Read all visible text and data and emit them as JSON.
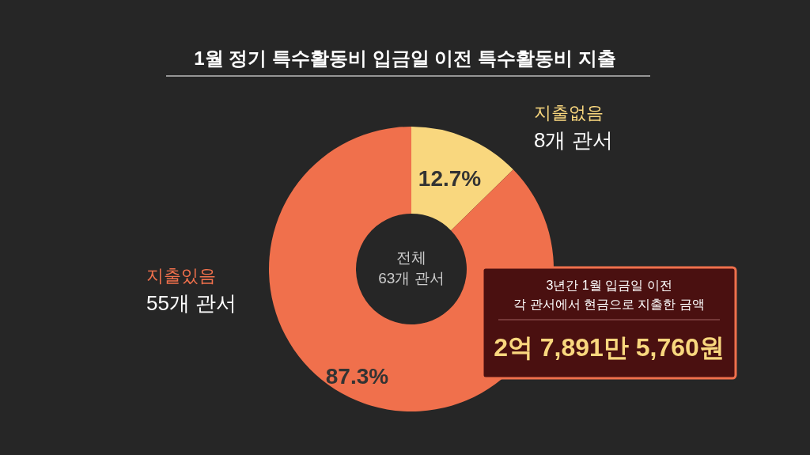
{
  "chart_data": {
    "type": "donut",
    "title": "1월 정기 특수활동비 입금일 이전 특수활동비 지출",
    "categories": [
      "지출없음",
      "지출있음"
    ],
    "values": [
      12.7,
      87.3
    ],
    "colors": [
      "#f9d77e",
      "#f0704c"
    ],
    "value_labels": [
      "12.7%",
      "87.3%"
    ],
    "annotations": [
      "8개 관서",
      "55개 관서",
      "전체 63개 관서",
      "3년간 1월 입금일 이전 각 관서에서 현금으로 지출한 금액",
      "2억 7,891만 5,760원"
    ]
  }
}
